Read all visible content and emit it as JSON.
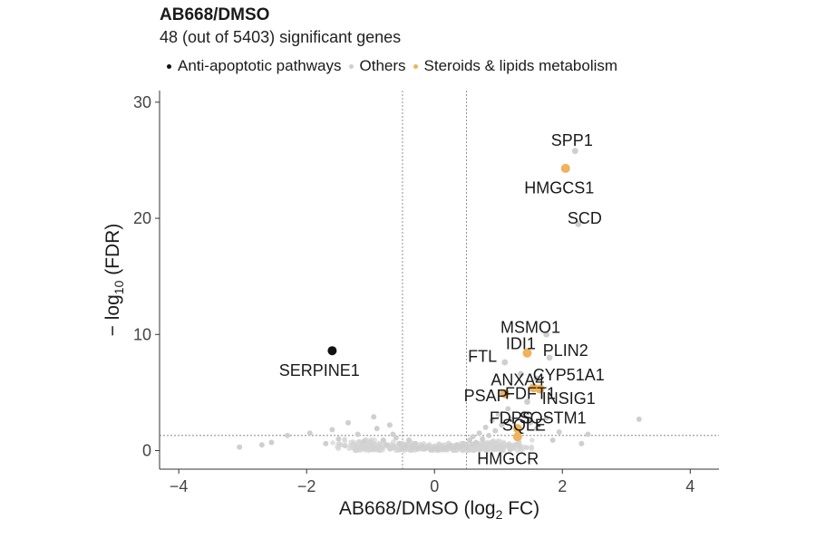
{
  "chart_data": {
    "type": "scatter",
    "title": "AB668/DMSO",
    "subtitle": "48 (out of 5403) significant genes",
    "xlabel": "AB668/DMSO (log",
    "xlabel_sub": "2",
    "xlabel_suffix": " FC)",
    "ylabel": "− log",
    "ylabel_sub": "10",
    "ylabel_suffix": " (FDR)",
    "xlim": [
      -4.3,
      4.45
    ],
    "ylim": [
      -1.6,
      31
    ],
    "xticks": [
      -4,
      -2,
      0,
      2,
      4
    ],
    "yticks": [
      0,
      10,
      20,
      30
    ],
    "vlines": [
      -0.5,
      0.5
    ],
    "hline": 1.3,
    "grid": false,
    "legend_position": "top",
    "legend": [
      {
        "name": "Anti-apoptotic pathways",
        "color": "#111111"
      },
      {
        "name": "Others",
        "color": "#cfcfcf"
      },
      {
        "name": "Steroids & lipids metabolism",
        "color": "#f0b25a"
      }
    ],
    "highlighted": [
      {
        "gene": "SERPINE1",
        "x": -1.6,
        "y": 8.6,
        "group": "Anti-apoptotic pathways",
        "label_dx": -0.2,
        "label_dy": -1.7
      },
      {
        "gene": "SPP1",
        "x": 2.2,
        "y": 25.8,
        "group": "Others",
        "label_dx": -0.05,
        "label_dy": 0.9
      },
      {
        "gene": "HMGCS1",
        "x": 2.05,
        "y": 24.3,
        "group": "Steroids & lipids metabolism",
        "label_dx": -0.1,
        "label_dy": -1.7
      },
      {
        "gene": "SCD",
        "x": 2.25,
        "y": 19.5,
        "group": "Others",
        "label_dx": 0.1,
        "label_dy": 0.5
      },
      {
        "gene": "MSMO1",
        "x": 1.75,
        "y": 10.0,
        "group": "Others",
        "label_dx": -0.25,
        "label_dy": 0.6
      },
      {
        "gene": "IDI1",
        "x": 1.45,
        "y": 8.4,
        "group": "Steroids & lipids metabolism",
        "label_dx": -0.1,
        "label_dy": 0.8
      },
      {
        "gene": "PLIN2",
        "x": 1.8,
        "y": 8.0,
        "group": "Others",
        "label_dx": 0.25,
        "label_dy": 0.6
      },
      {
        "gene": "FTL",
        "x": 1.1,
        "y": 7.6,
        "group": "Others",
        "label_dx": -0.35,
        "label_dy": 0.5
      },
      {
        "gene": "ANXA4",
        "x": 1.35,
        "y": 6.6,
        "group": "Others",
        "label_dx": -0.05,
        "label_dy": -0.5
      },
      {
        "gene": "CYP51A1",
        "x": 1.6,
        "y": 6.2,
        "group": "Others",
        "label_dx": 0.5,
        "label_dy": 0.3
      },
      {
        "gene": "PSAP",
        "x": 1.05,
        "y": 5.0,
        "group": "Others",
        "label_dx": -0.25,
        "label_dy": -0.3
      },
      {
        "gene": "FDFT1",
        "x": 1.55,
        "y": 5.4,
        "group": "Steroids & lipids metabolism",
        "label_dx": -0.05,
        "label_dy": -0.5
      },
      {
        "gene": "INSIG1",
        "x": 1.65,
        "y": 5.3,
        "group": "Steroids & lipids metabolism",
        "label_dx": 0.45,
        "label_dy": -0.8
      },
      {
        "gene": "FDPS",
        "x": 1.1,
        "y": 4.9,
        "group": "Steroids & lipids metabolism",
        "label_dx": 0.1,
        "label_dy": -2.1
      },
      {
        "gene": "SQSTM1",
        "x": 1.45,
        "y": 4.2,
        "group": "Others",
        "label_dx": 0.4,
        "label_dy": -1.4
      },
      {
        "gene": "SQLE",
        "x": 1.3,
        "y": 1.9,
        "group": "Steroids & lipids metabolism",
        "label_dx": 0.1,
        "label_dy": 0.3
      },
      {
        "gene": "HMGCR",
        "x": 1.3,
        "y": 1.2,
        "group": "Steroids & lipids metabolism",
        "label_dx": -0.15,
        "label_dy": -1.9
      }
    ],
    "others": [
      [
        -3.05,
        0.3
      ],
      [
        -2.7,
        0.5
      ],
      [
        -2.55,
        0.7
      ],
      [
        -2.3,
        1.3
      ],
      [
        -1.95,
        1.5
      ],
      [
        -1.6,
        1.8
      ],
      [
        -1.35,
        2.4
      ],
      [
        -0.95,
        2.9
      ],
      [
        -0.8,
        0.9
      ],
      [
        -1.5,
        1.0
      ],
      [
        -1.7,
        0.6
      ],
      [
        -0.65,
        1.4
      ],
      [
        -1.1,
        0.8
      ],
      [
        -0.75,
        0.5
      ],
      [
        -0.6,
        1.1
      ],
      [
        -0.55,
        0.6
      ],
      [
        -0.45,
        0.4
      ],
      [
        -0.4,
        0.9
      ],
      [
        -0.35,
        0.3
      ],
      [
        -0.3,
        0.6
      ],
      [
        -0.25,
        0.2
      ],
      [
        -0.2,
        0.4
      ],
      [
        -0.15,
        0.15
      ],
      [
        -0.1,
        0.3
      ],
      [
        -0.05,
        0.1
      ],
      [
        0.0,
        0.2
      ],
      [
        0.05,
        0.1
      ],
      [
        0.1,
        0.3
      ],
      [
        0.15,
        0.15
      ],
      [
        0.2,
        0.25
      ],
      [
        0.25,
        0.4
      ],
      [
        0.3,
        0.2
      ],
      [
        0.35,
        0.5
      ],
      [
        0.4,
        0.3
      ],
      [
        0.45,
        0.6
      ],
      [
        0.55,
        0.9
      ],
      [
        0.6,
        1.2
      ],
      [
        0.65,
        0.7
      ],
      [
        0.7,
        1.5
      ],
      [
        0.75,
        1.0
      ],
      [
        0.8,
        2.0
      ],
      [
        0.85,
        1.3
      ],
      [
        0.9,
        2.6
      ],
      [
        0.95,
        1.7
      ],
      [
        1.0,
        3.1
      ],
      [
        1.05,
        2.2
      ],
      [
        1.15,
        3.6
      ],
      [
        1.2,
        2.7
      ],
      [
        1.4,
        3.2
      ],
      [
        1.5,
        2.4
      ],
      [
        1.6,
        1.9
      ],
      [
        1.75,
        2.8
      ],
      [
        1.85,
        0.9
      ],
      [
        1.95,
        1.6
      ],
      [
        2.3,
        0.6
      ],
      [
        2.4,
        1.4
      ],
      [
        3.2,
        2.7
      ],
      [
        -0.9,
        1.9
      ],
      [
        -1.2,
        1.4
      ],
      [
        -0.7,
        2.2
      ],
      [
        0.5,
        0.3
      ],
      [
        0.6,
        0.5
      ],
      [
        -0.5,
        0.2
      ]
    ]
  }
}
